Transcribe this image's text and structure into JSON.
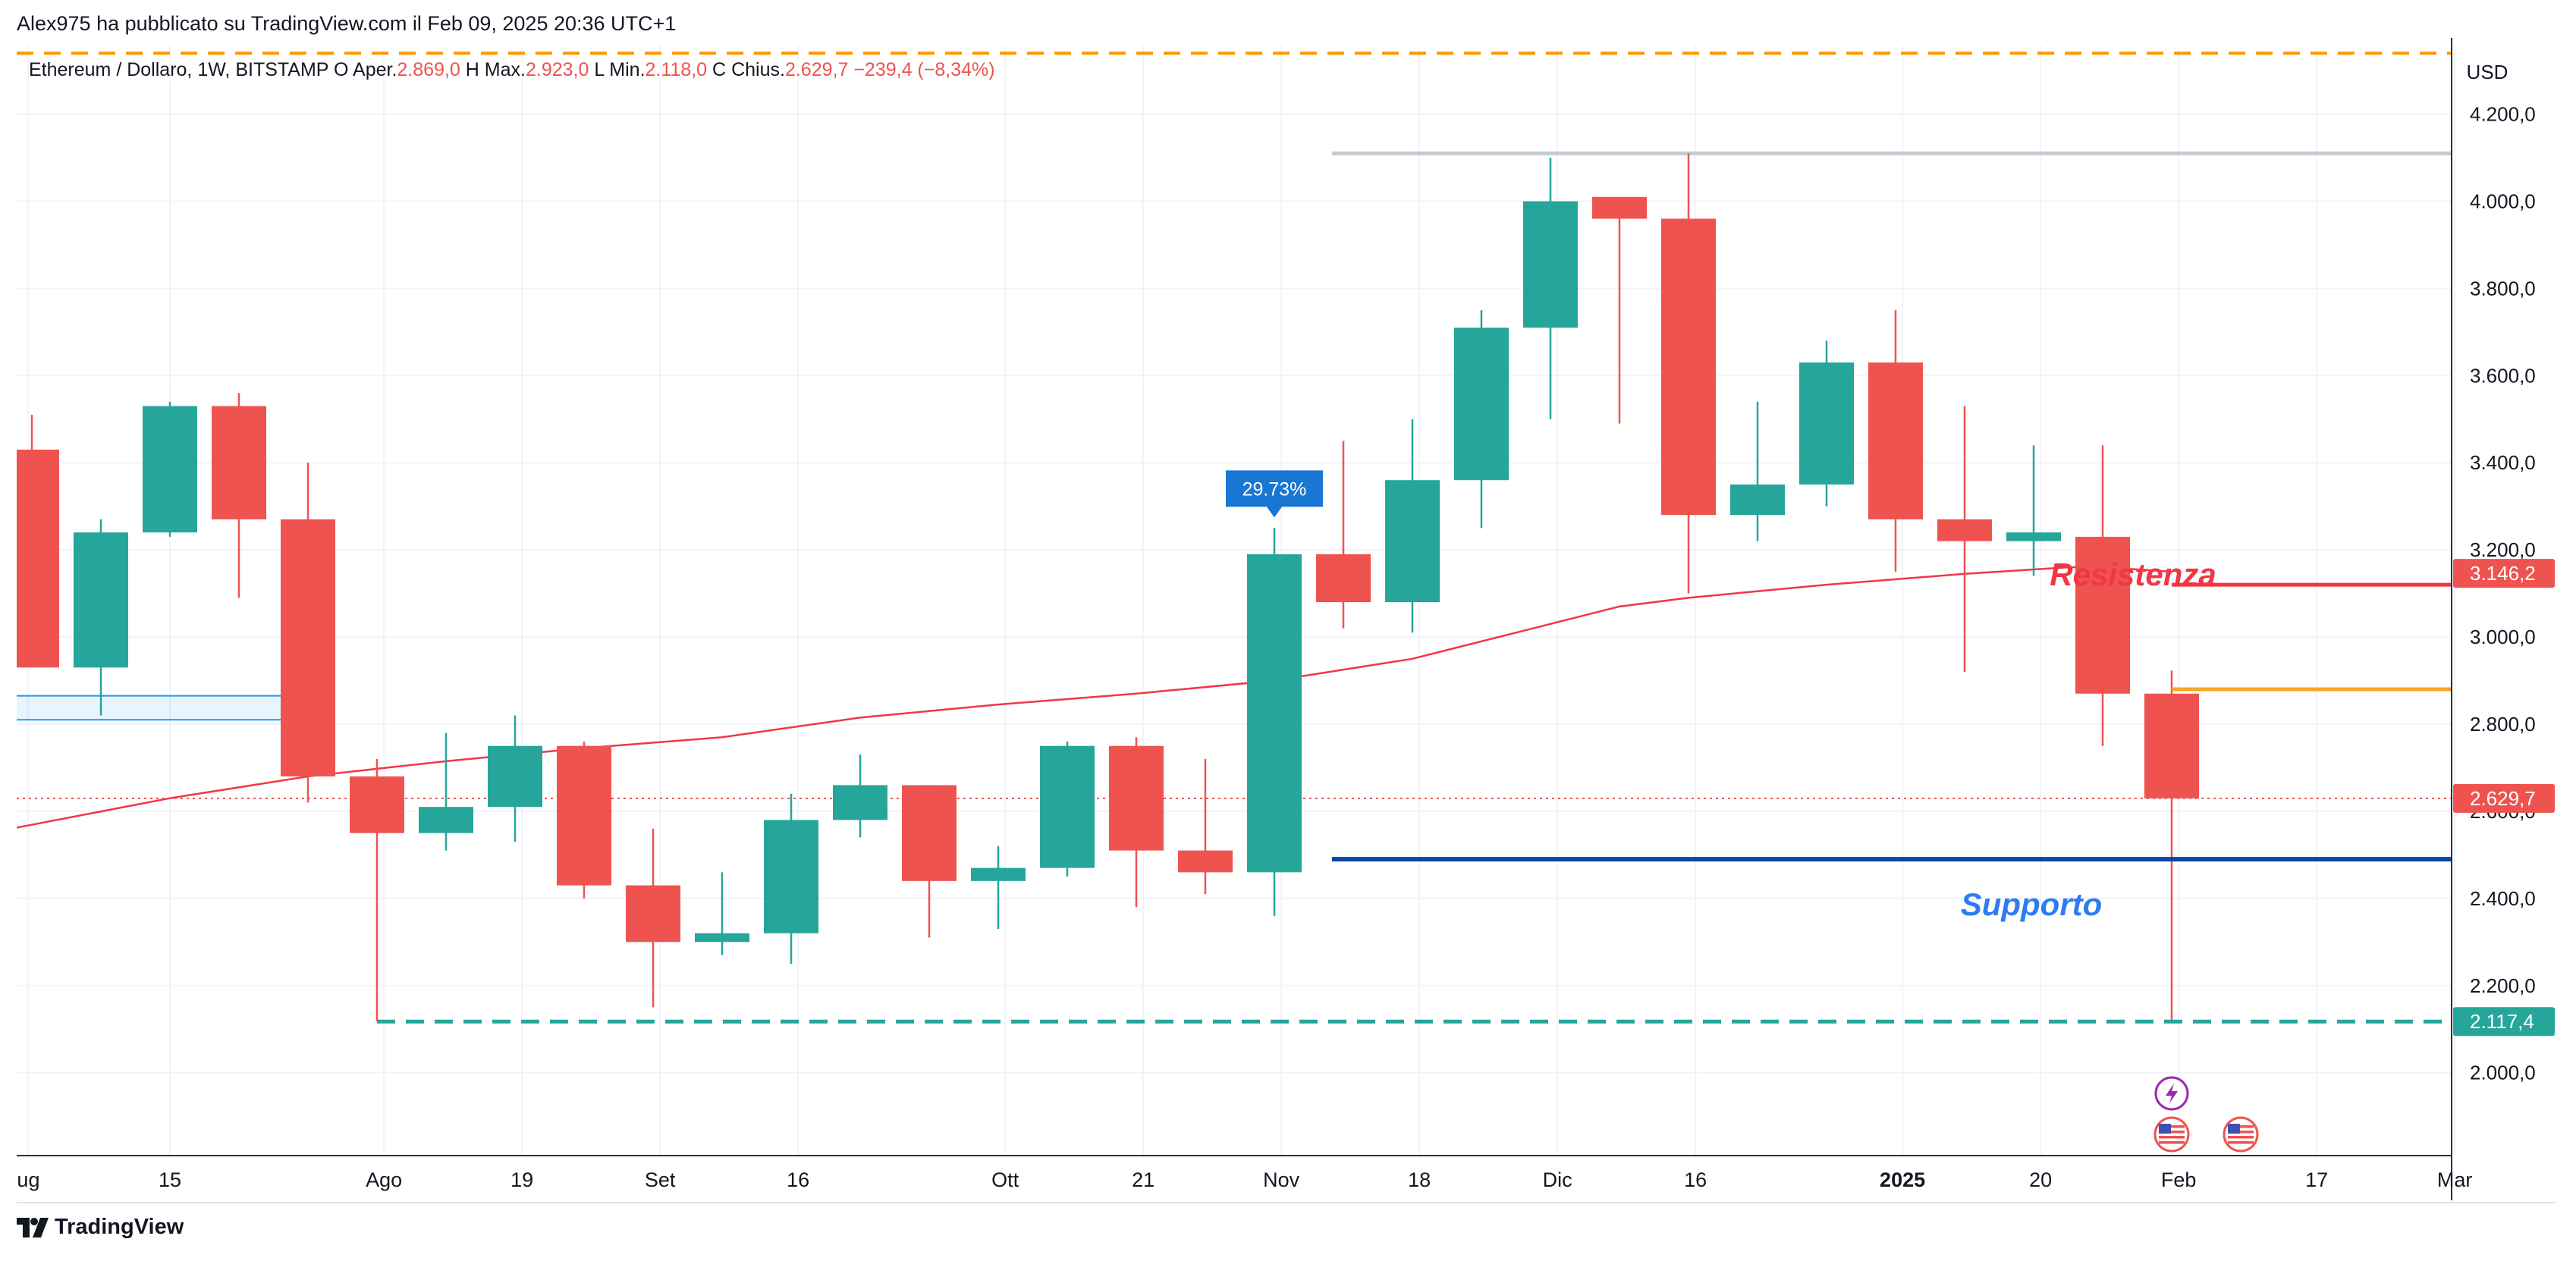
{
  "header": {
    "published_text": "Alex975 ha pubblicato su TradingView.com il Feb 09, 2025 20:36 UTC+1"
  },
  "legend": {
    "symbol": "Ethereum / Dollaro, 1W, BITSTAMP",
    "open_label": "O",
    "open_name": "Aper.",
    "open_value": "2.869,0",
    "high_label": "H",
    "high_name": "Max.",
    "high_value": "2.923,0",
    "low_label": "L",
    "low_name": "Min.",
    "low_value": "2.118,0",
    "close_label": "C",
    "close_name": "Chius.",
    "close_value": "2.629,7",
    "change_text": "−239,4 (−8,34%)"
  },
  "footer": {
    "brand": "TradingView"
  },
  "colors": {
    "up": "#26a69a",
    "down": "#ef5350",
    "ma": "#f23645",
    "support_line": "#0d47a1",
    "resistance_line": "#f23645",
    "support_text": "#2e7df0",
    "resistance_text": "#f23645",
    "orange_line": "#f5a623",
    "top_dashed": "#ff9800",
    "bottom_dashed": "#26a69a",
    "ath_line": "#c5cad3",
    "badge": "#1976d2",
    "grid": "#f0f3fa",
    "axis_text": "#131722",
    "event_icon": "#9c27b0"
  },
  "chart_data": {
    "type": "candlestick",
    "title": "Ethereum / Dollaro, 1W, BITSTAMP",
    "currency": "USD",
    "ylim": [
      1840,
      4330
    ],
    "y_ticks": [
      {
        "value": 2000,
        "label": "2.000,0"
      },
      {
        "value": 2200,
        "label": "2.200,0"
      },
      {
        "value": 2400,
        "label": "2.400,0"
      },
      {
        "value": 2600,
        "label": "2.600,0"
      },
      {
        "value": 2800,
        "label": "2.800,0"
      },
      {
        "value": 3000,
        "label": "3.000,0"
      },
      {
        "value": 3200,
        "label": "3.200,0"
      },
      {
        "value": 3400,
        "label": "3.400,0"
      },
      {
        "value": 3600,
        "label": "3.600,0"
      },
      {
        "value": 3800,
        "label": "3.800,0"
      },
      {
        "value": 4000,
        "label": "4.000,0"
      },
      {
        "value": 4200,
        "label": "4.200,0"
      }
    ],
    "x_ticks": [
      {
        "index": -0.05,
        "label": "ug",
        "bold": false
      },
      {
        "index": 2.0,
        "label": "15",
        "bold": false
      },
      {
        "index": 5.1,
        "label": "Ago",
        "bold": false
      },
      {
        "index": 7.1,
        "label": "19",
        "bold": false
      },
      {
        "index": 9.1,
        "label": "Set",
        "bold": false
      },
      {
        "index": 11.1,
        "label": "16",
        "bold": false
      },
      {
        "index": 14.1,
        "label": "Ott",
        "bold": false
      },
      {
        "index": 16.1,
        "label": "21",
        "bold": false
      },
      {
        "index": 18.1,
        "label": "Nov",
        "bold": false
      },
      {
        "index": 20.1,
        "label": "18",
        "bold": false
      },
      {
        "index": 22.1,
        "label": "Dic",
        "bold": false
      },
      {
        "index": 24.1,
        "label": "16",
        "bold": false
      },
      {
        "index": 27.1,
        "label": "2025",
        "bold": true
      },
      {
        "index": 29.1,
        "label": "20",
        "bold": false
      },
      {
        "index": 31.1,
        "label": "Feb",
        "bold": false
      },
      {
        "index": 33.1,
        "label": "17",
        "bold": false
      },
      {
        "index": 35.1,
        "label": "Mar",
        "bold": false
      }
    ],
    "candles": [
      {
        "open": 3430,
        "high": 3510,
        "low": 2930,
        "close": 2930
      },
      {
        "open": 2930,
        "high": 3270,
        "low": 2820,
        "close": 3240
      },
      {
        "open": 3240,
        "high": 3540,
        "low": 3230,
        "close": 3530
      },
      {
        "open": 3530,
        "high": 3560,
        "low": 3090,
        "close": 3270
      },
      {
        "open": 3270,
        "high": 3400,
        "low": 2620,
        "close": 2680
      },
      {
        "open": 2680,
        "high": 2720,
        "low": 2118,
        "close": 2550
      },
      {
        "open": 2550,
        "high": 2780,
        "low": 2510,
        "close": 2610
      },
      {
        "open": 2610,
        "high": 2820,
        "low": 2530,
        "close": 2750
      },
      {
        "open": 2750,
        "high": 2760,
        "low": 2400,
        "close": 2430
      },
      {
        "open": 2430,
        "high": 2560,
        "low": 2150,
        "close": 2300
      },
      {
        "open": 2300,
        "high": 2460,
        "low": 2270,
        "close": 2320
      },
      {
        "open": 2320,
        "high": 2640,
        "low": 2250,
        "close": 2580
      },
      {
        "open": 2580,
        "high": 2730,
        "low": 2540,
        "close": 2660
      },
      {
        "open": 2660,
        "high": 2660,
        "low": 2310,
        "close": 2440
      },
      {
        "open": 2440,
        "high": 2520,
        "low": 2330,
        "close": 2470
      },
      {
        "open": 2470,
        "high": 2760,
        "low": 2450,
        "close": 2750
      },
      {
        "open": 2750,
        "high": 2770,
        "low": 2380,
        "close": 2510
      },
      {
        "open": 2510,
        "high": 2720,
        "low": 2410,
        "close": 2460
      },
      {
        "open": 2460,
        "high": 3250,
        "low": 2360,
        "close": 3190
      },
      {
        "open": 3190,
        "high": 3450,
        "low": 3020,
        "close": 3080
      },
      {
        "open": 3080,
        "high": 3500,
        "low": 3010,
        "close": 3360
      },
      {
        "open": 3360,
        "high": 3750,
        "low": 3250,
        "close": 3710
      },
      {
        "open": 3710,
        "high": 4100,
        "low": 3500,
        "close": 4000
      },
      {
        "open": 4010,
        "high": 4010,
        "low": 3490,
        "close": 3960
      },
      {
        "open": 3960,
        "high": 4110,
        "low": 3100,
        "close": 3280
      },
      {
        "open": 3280,
        "high": 3540,
        "low": 3220,
        "close": 3350
      },
      {
        "open": 3350,
        "high": 3680,
        "low": 3300,
        "close": 3630
      },
      {
        "open": 3630,
        "high": 3750,
        "low": 3150,
        "close": 3270
      },
      {
        "open": 3270,
        "high": 3530,
        "low": 2920,
        "close": 3220
      },
      {
        "open": 3220,
        "high": 3440,
        "low": 3140,
        "close": 3240
      },
      {
        "open": 3230,
        "high": 3440,
        "low": 2750,
        "close": 2870
      },
      {
        "open": 2870,
        "high": 2923,
        "low": 2118,
        "close": 2629.7
      }
    ],
    "moving_average": [
      {
        "index": -0.3,
        "value": 2560
      },
      {
        "index": 2,
        "value": 2630
      },
      {
        "index": 4,
        "value": 2680
      },
      {
        "index": 6,
        "value": 2715
      },
      {
        "index": 8,
        "value": 2745
      },
      {
        "index": 10,
        "value": 2770
      },
      {
        "index": 12,
        "value": 2815
      },
      {
        "index": 14,
        "value": 2845
      },
      {
        "index": 16,
        "value": 2870
      },
      {
        "index": 18,
        "value": 2900
      },
      {
        "index": 20,
        "value": 2950
      },
      {
        "index": 22,
        "value": 3030
      },
      {
        "index": 23,
        "value": 3070
      },
      {
        "index": 24,
        "value": 3090
      },
      {
        "index": 26,
        "value": 3120
      },
      {
        "index": 28,
        "value": 3145
      },
      {
        "index": 29.5,
        "value": 3160
      },
      {
        "index": 30,
        "value": 3160
      },
      {
        "index": 31,
        "value": 3150
      }
    ],
    "annotations": {
      "top_dashed": {
        "value": 4340
      },
      "ath_line": {
        "value": 4110,
        "from_index": 19
      },
      "resistance": {
        "value": 3120,
        "from_index": 31,
        "label": "Resistenza"
      },
      "orange_level": {
        "value": 2880,
        "from_index": 31
      },
      "support": {
        "value": 2490,
        "from_index": 19,
        "label": "Supporto"
      },
      "low_dashed": {
        "value": 2117.4,
        "from_index": 5
      },
      "close_dotted": {
        "value": 2629.7
      },
      "zone": {
        "from_index": -0.3,
        "to_index": 3.7,
        "high": 2865,
        "low": 2810
      },
      "pct_badge": {
        "index": 18,
        "value": 3250,
        "label": "29.73%"
      }
    },
    "price_tags": [
      {
        "value": 3146.2,
        "label": "3.146,2",
        "kind": "down"
      },
      {
        "value": 2629.7,
        "label": "2.629,7",
        "kind": "down"
      },
      {
        "value": 2117.4,
        "label": "2.117,4",
        "kind": "up"
      }
    ],
    "events": [
      {
        "index": 31,
        "icon": "lightning-icon"
      },
      {
        "index": 31,
        "icon": "us-flag-icon"
      },
      {
        "index": 32,
        "icon": "us-flag-icon"
      }
    ]
  }
}
